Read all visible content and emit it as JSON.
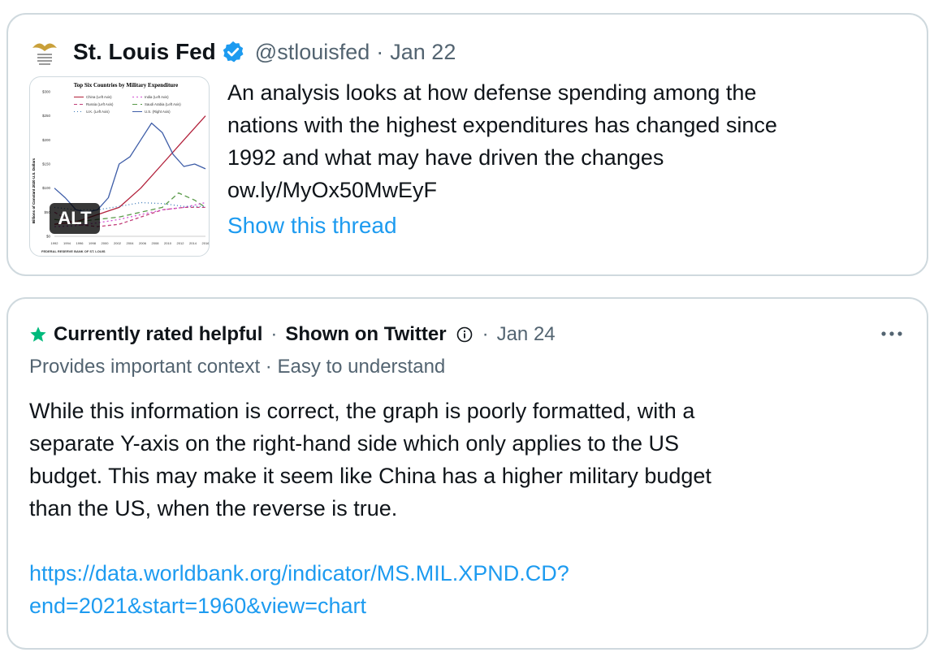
{
  "tweet": {
    "author_name": "St. Louis Fed",
    "handle": "@stlouisfed",
    "separator": "·",
    "date": "Jan 22",
    "text": "An analysis looks at how defense spending among the\nnations with the highest expenditures has changed since\n1992 and what may have driven the changes\now.ly/MyOx50MwEyF",
    "show_thread_label": "Show this thread",
    "icons": {
      "logo": "eagle-logo-icon",
      "verified": "verified-badge-icon"
    },
    "media": {
      "alt_label": "ALT",
      "chart_data": {
        "type": "line",
        "title": "Top Six Countries by Military Expenditure",
        "ylabel": "Billions of Constant 2020 U.S. Dollars",
        "y_ticks": [
          "$300",
          "$250",
          "$200",
          "$150",
          "$100",
          "$50",
          "$0"
        ],
        "ylim": [
          0,
          300
        ],
        "x_ticks": [
          "1992",
          "1994",
          "1996",
          "1998",
          "2000",
          "2002",
          "2004",
          "2006",
          "2008",
          "2010",
          "2012",
          "2014",
          "2016"
        ],
        "legend": [
          "China (Left Axis)",
          "India (Left Axis)",
          "Russia (Left Axis)",
          "Saudi Arabia (Left Axis)",
          "U.K. (Left Axis)",
          "U.S. (Right Axis)"
        ],
        "source_text": "FEDERAL RESERVE BANK OF ST. LOUIS",
        "series": [
          {
            "name": "China (Left Axis)",
            "color": "#b2203a",
            "dash": "",
            "x": [
              1992,
              1996,
              2000,
              2004,
              2008,
              2012,
              2016,
              2020
            ],
            "values": [
              25,
              30,
              45,
              60,
              100,
              150,
              200,
              250
            ]
          },
          {
            "name": "U.S. (Right Axis)",
            "color": "#3f5ea8",
            "dash": "",
            "x": [
              1992,
              1994,
              1996,
              1998,
              2000,
              2002,
              2004,
              2006,
              2008,
              2010,
              2012,
              2014,
              2016,
              2018,
              2020
            ],
            "values": [
              100,
              80,
              55,
              50,
              55,
              80,
              150,
              165,
              200,
              235,
              215,
              170,
              145,
              150,
              140
            ]
          },
          {
            "name": "Saudi Arabia (Left Axis)",
            "color": "#5a9a4a",
            "dash": "6 4",
            "x": [
              1992,
              1996,
              2000,
              2004,
              2008,
              2012,
              2015,
              2018,
              2020
            ],
            "values": [
              35,
              30,
              35,
              40,
              50,
              60,
              90,
              75,
              60
            ]
          },
          {
            "name": "Russia (Left Axis)",
            "color": "#c2407a",
            "dash": "4 3",
            "x": [
              1992,
              1996,
              2000,
              2004,
              2008,
              2012,
              2016,
              2020
            ],
            "values": [
              50,
              25,
              20,
              25,
              40,
              55,
              60,
              60
            ]
          },
          {
            "name": "India (Left Axis)",
            "color": "#d24fd2",
            "dash": "2 3",
            "x": [
              1992,
              1996,
              2000,
              2004,
              2008,
              2012,
              2016,
              2020
            ],
            "values": [
              20,
              22,
              28,
              35,
              45,
              55,
              60,
              70
            ]
          },
          {
            "name": "U.K. (Left Axis)",
            "color": "#3a78b8",
            "dash": "1 3",
            "x": [
              1992,
              1996,
              2000,
              2004,
              2008,
              2012,
              2016,
              2020
            ],
            "values": [
              60,
              55,
              55,
              62,
              70,
              68,
              62,
              62
            ]
          }
        ]
      }
    }
  },
  "note": {
    "status": "Currently rated helpful",
    "separator": "·",
    "shown": "Shown on Twitter",
    "date": "Jan 24",
    "reasons": "Provides important context · Easy to understand",
    "body": "While this information is correct, the graph is poorly formatted, with a\nseparate Y-axis on the right-hand side which only applies to the US\nbudget. This may make it seem like China has a higher military budget\nthan the US, when the reverse is true.",
    "link": "https://data.worldbank.org/indicator/MS.MIL.XPND.CD?\nend=2021&start=1960&view=chart",
    "colors": {
      "star": "#00ba7c",
      "link": "#1d9bf0"
    },
    "icons": {
      "status": "star-icon",
      "info": "info-circle-icon",
      "more": "more-options-icon"
    }
  }
}
